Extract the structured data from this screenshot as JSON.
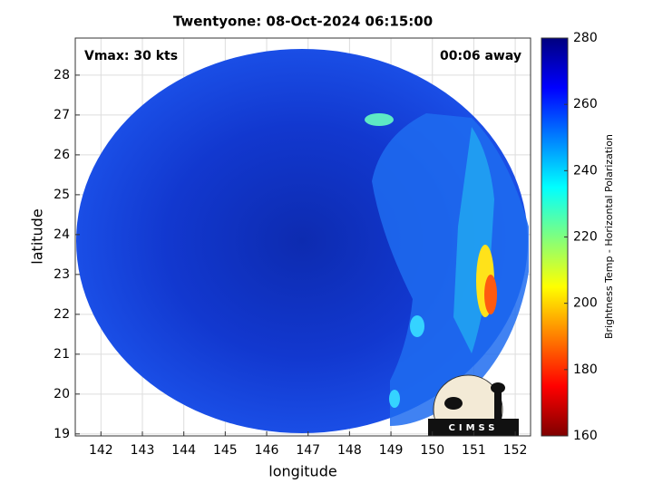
{
  "chart_data": {
    "type": "image",
    "title": "Twentyone: 08-Oct-2024 06:15:00",
    "annotations": [
      "Vmax: 30 kts",
      "00:06 away"
    ],
    "x_label": "longitude",
    "y_label": "latitude",
    "xlim": [
      141.38,
      152.37
    ],
    "ylim": [
      18.95,
      28.93
    ],
    "xticks": [
      142,
      143,
      144,
      145,
      146,
      147,
      148,
      149,
      150,
      151,
      152
    ],
    "yticks": [
      19,
      20,
      21,
      22,
      23,
      24,
      25,
      26,
      27,
      28
    ],
    "grid": true,
    "colorbar": {
      "label": "Brightness Temp - Horizontal Polarization",
      "colormap": "jet",
      "lim": [
        160,
        280
      ],
      "ticks": [
        160,
        180,
        200,
        220,
        240,
        260,
        280
      ]
    },
    "logo": "CIMSS"
  }
}
